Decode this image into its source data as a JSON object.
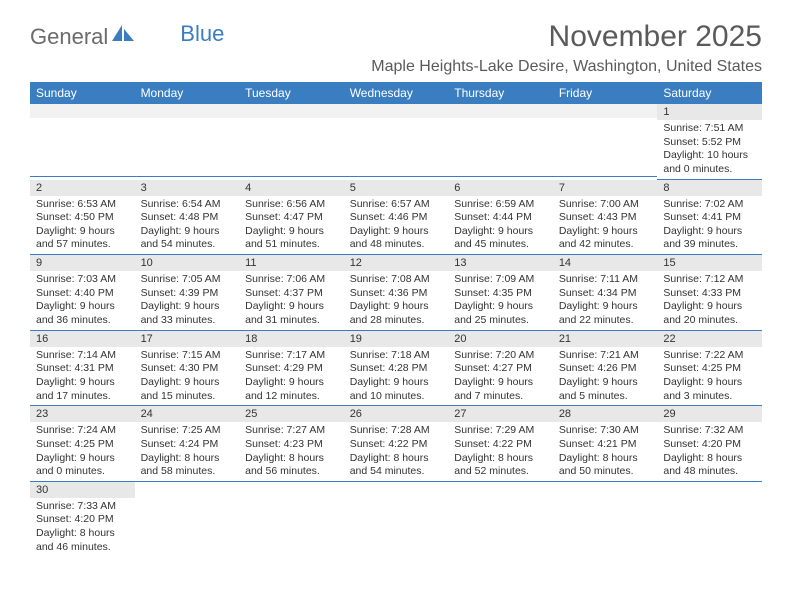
{
  "logo": {
    "part1": "General",
    "part2": "Blue"
  },
  "title": "November 2025",
  "location": "Maple Heights-Lake Desire, Washington, United States",
  "colors": {
    "header_bg": "#3a7ec1",
    "header_text": "#ffffff",
    "daynum_bg": "#e8e8e8",
    "border": "#3a7ec1",
    "body_text": "#333333",
    "title_text": "#5a5a5a",
    "logo_gray": "#6b6b6b",
    "logo_blue": "#3a7ec1"
  },
  "daysOfWeek": [
    "Sunday",
    "Monday",
    "Tuesday",
    "Wednesday",
    "Thursday",
    "Friday",
    "Saturday"
  ],
  "weeks": [
    [
      null,
      null,
      null,
      null,
      null,
      null,
      {
        "n": "1",
        "sr": "7:51 AM",
        "ss": "5:52 PM",
        "dl": "10 hours and 0 minutes."
      }
    ],
    [
      {
        "n": "2",
        "sr": "6:53 AM",
        "ss": "4:50 PM",
        "dl": "9 hours and 57 minutes."
      },
      {
        "n": "3",
        "sr": "6:54 AM",
        "ss": "4:48 PM",
        "dl": "9 hours and 54 minutes."
      },
      {
        "n": "4",
        "sr": "6:56 AM",
        "ss": "4:47 PM",
        "dl": "9 hours and 51 minutes."
      },
      {
        "n": "5",
        "sr": "6:57 AM",
        "ss": "4:46 PM",
        "dl": "9 hours and 48 minutes."
      },
      {
        "n": "6",
        "sr": "6:59 AM",
        "ss": "4:44 PM",
        "dl": "9 hours and 45 minutes."
      },
      {
        "n": "7",
        "sr": "7:00 AM",
        "ss": "4:43 PM",
        "dl": "9 hours and 42 minutes."
      },
      {
        "n": "8",
        "sr": "7:02 AM",
        "ss": "4:41 PM",
        "dl": "9 hours and 39 minutes."
      }
    ],
    [
      {
        "n": "9",
        "sr": "7:03 AM",
        "ss": "4:40 PM",
        "dl": "9 hours and 36 minutes."
      },
      {
        "n": "10",
        "sr": "7:05 AM",
        "ss": "4:39 PM",
        "dl": "9 hours and 33 minutes."
      },
      {
        "n": "11",
        "sr": "7:06 AM",
        "ss": "4:37 PM",
        "dl": "9 hours and 31 minutes."
      },
      {
        "n": "12",
        "sr": "7:08 AM",
        "ss": "4:36 PM",
        "dl": "9 hours and 28 minutes."
      },
      {
        "n": "13",
        "sr": "7:09 AM",
        "ss": "4:35 PM",
        "dl": "9 hours and 25 minutes."
      },
      {
        "n": "14",
        "sr": "7:11 AM",
        "ss": "4:34 PM",
        "dl": "9 hours and 22 minutes."
      },
      {
        "n": "15",
        "sr": "7:12 AM",
        "ss": "4:33 PM",
        "dl": "9 hours and 20 minutes."
      }
    ],
    [
      {
        "n": "16",
        "sr": "7:14 AM",
        "ss": "4:31 PM",
        "dl": "9 hours and 17 minutes."
      },
      {
        "n": "17",
        "sr": "7:15 AM",
        "ss": "4:30 PM",
        "dl": "9 hours and 15 minutes."
      },
      {
        "n": "18",
        "sr": "7:17 AM",
        "ss": "4:29 PM",
        "dl": "9 hours and 12 minutes."
      },
      {
        "n": "19",
        "sr": "7:18 AM",
        "ss": "4:28 PM",
        "dl": "9 hours and 10 minutes."
      },
      {
        "n": "20",
        "sr": "7:20 AM",
        "ss": "4:27 PM",
        "dl": "9 hours and 7 minutes."
      },
      {
        "n": "21",
        "sr": "7:21 AM",
        "ss": "4:26 PM",
        "dl": "9 hours and 5 minutes."
      },
      {
        "n": "22",
        "sr": "7:22 AM",
        "ss": "4:25 PM",
        "dl": "9 hours and 3 minutes."
      }
    ],
    [
      {
        "n": "23",
        "sr": "7:24 AM",
        "ss": "4:25 PM",
        "dl": "9 hours and 0 minutes."
      },
      {
        "n": "24",
        "sr": "7:25 AM",
        "ss": "4:24 PM",
        "dl": "8 hours and 58 minutes."
      },
      {
        "n": "25",
        "sr": "7:27 AM",
        "ss": "4:23 PM",
        "dl": "8 hours and 56 minutes."
      },
      {
        "n": "26",
        "sr": "7:28 AM",
        "ss": "4:22 PM",
        "dl": "8 hours and 54 minutes."
      },
      {
        "n": "27",
        "sr": "7:29 AM",
        "ss": "4:22 PM",
        "dl": "8 hours and 52 minutes."
      },
      {
        "n": "28",
        "sr": "7:30 AM",
        "ss": "4:21 PM",
        "dl": "8 hours and 50 minutes."
      },
      {
        "n": "29",
        "sr": "7:32 AM",
        "ss": "4:20 PM",
        "dl": "8 hours and 48 minutes."
      }
    ],
    [
      {
        "n": "30",
        "sr": "7:33 AM",
        "ss": "4:20 PM",
        "dl": "8 hours and 46 minutes."
      },
      null,
      null,
      null,
      null,
      null,
      null
    ]
  ],
  "labels": {
    "sunrise": "Sunrise: ",
    "sunset": "Sunset: ",
    "daylight": "Daylight: "
  }
}
